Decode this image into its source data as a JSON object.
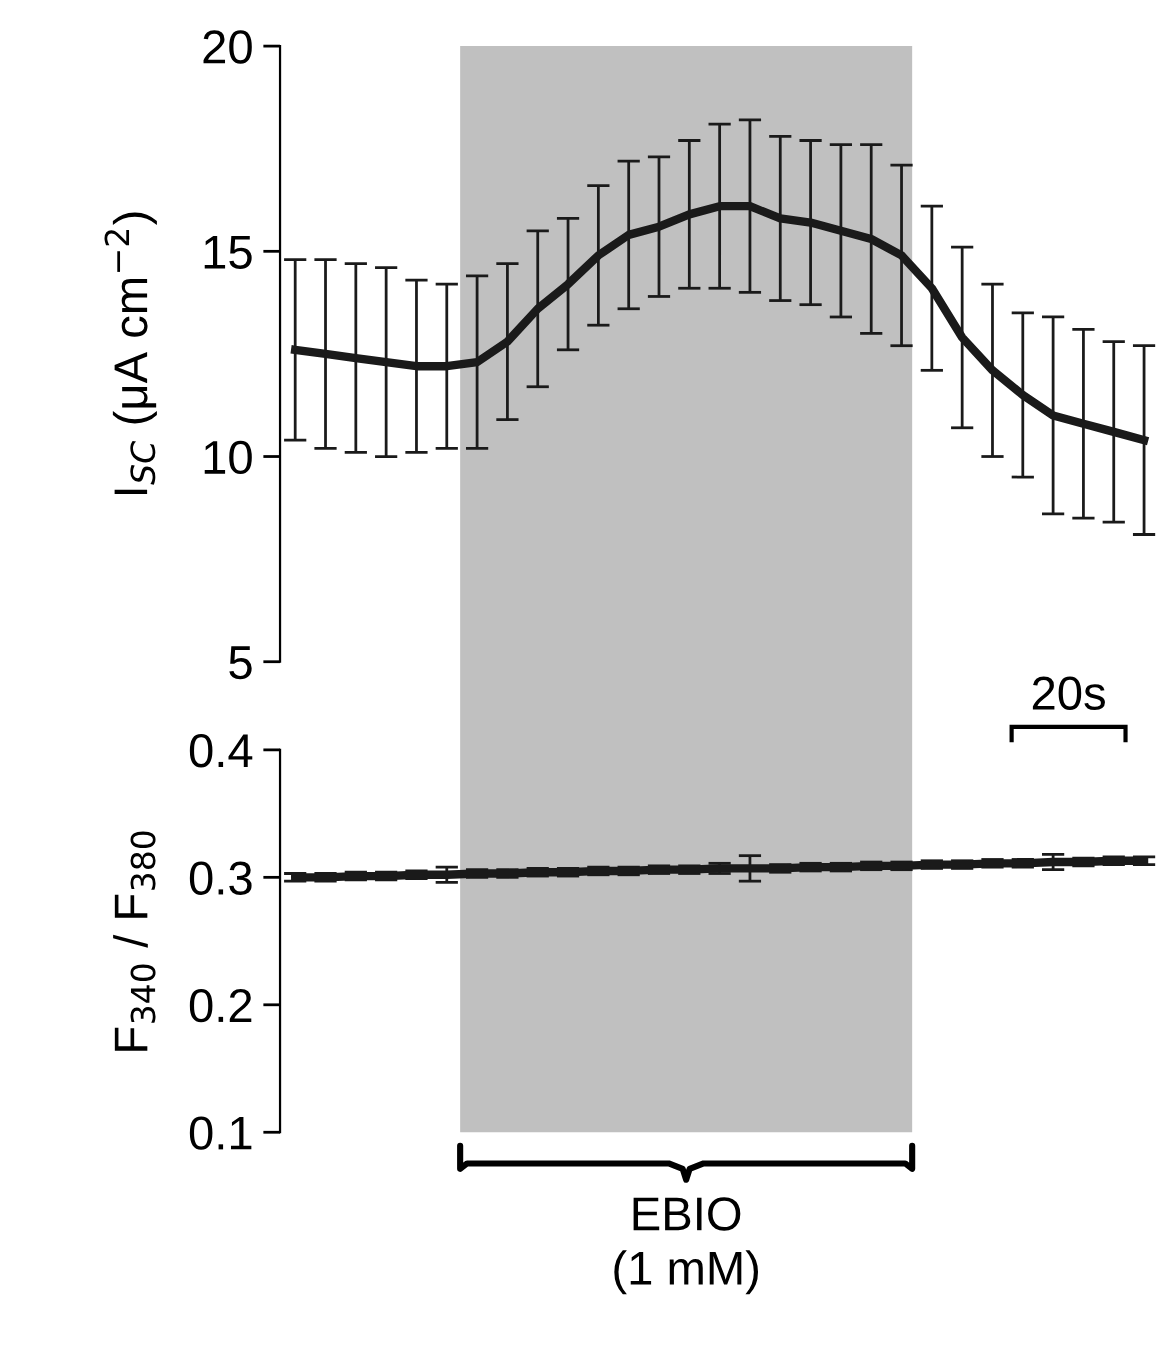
{
  "chart_data": [
    {
      "type": "line",
      "ylabel": "I$_{SC}$ (μA cm$^{−2}$)",
      "categories": [
        null,
        null,
        null,
        null,
        null,
        null,
        null,
        null,
        null,
        null,
        null,
        null,
        null,
        null,
        null,
        null,
        null,
        null,
        null,
        null,
        null,
        null,
        null,
        null,
        null,
        null,
        null,
        null,
        null
      ],
      "series": [
        {
          "color": "#1a1a1a",
          "values": [
            12.6,
            12.5,
            12.4,
            12.3,
            12.2,
            12.2,
            12.3,
            12.8,
            13.6,
            14.2,
            14.9,
            15.4,
            15.6,
            15.9,
            16.1,
            16.1,
            15.8,
            15.7,
            15.5,
            15.3,
            14.9,
            14.1,
            12.9,
            12.1,
            11.5,
            11.0,
            10.8,
            10.6,
            10.4
          ],
          "errors": [
            2.2,
            2.3,
            2.3,
            2.3,
            2.1,
            2.0,
            2.1,
            1.9,
            1.9,
            1.6,
            1.7,
            1.8,
            1.7,
            1.8,
            2.0,
            2.1,
            2.0,
            2.0,
            2.1,
            2.3,
            2.2,
            2.0,
            2.2,
            2.1,
            2.0,
            2.4,
            2.3,
            2.2,
            2.3
          ]
        }
      ],
      "ylim": [
        5,
        20
      ],
      "yticks": [
        5,
        10,
        15,
        20
      ],
      "tick_labels": "y",
      "marker": "none",
      "line_style": "solid"
    },
    {
      "type": "line",
      "ylabel": "F$_{340}$ / F$_{380}$",
      "categories": [
        null,
        null,
        null,
        null,
        null,
        null,
        null,
        null,
        null,
        null,
        null,
        null,
        null,
        null,
        null,
        null,
        null,
        null,
        null,
        null,
        null,
        null,
        null,
        null,
        null,
        null,
        null,
        null,
        null
      ],
      "series": [
        {
          "color": "#1a1a1a",
          "values": [
            0.3,
            0.3,
            0.301,
            0.301,
            0.302,
            0.302,
            0.303,
            0.303,
            0.304,
            0.304,
            0.305,
            0.305,
            0.306,
            0.306,
            0.307,
            0.307,
            0.307,
            0.308,
            0.308,
            0.309,
            0.309,
            0.31,
            0.31,
            0.311,
            0.311,
            0.312,
            0.312,
            0.313,
            0.313
          ],
          "errors": [
            0.003,
            0.003,
            0.003,
            0.003,
            0.003,
            0.006,
            0.003,
            0.003,
            0.003,
            0.003,
            0.003,
            0.003,
            0.003,
            0.003,
            0.004,
            0.01,
            0.003,
            0.003,
            0.003,
            0.003,
            0.003,
            0.003,
            0.003,
            0.003,
            0.003,
            0.006,
            0.003,
            0.003,
            0.003
          ]
        }
      ],
      "ylim": [
        0.1,
        0.4
      ],
      "yticks": [
        0.1,
        0.2,
        0.3,
        0.4
      ],
      "tick_labels": "y",
      "marker": "none",
      "line_style": "solid",
      "annotations": [
        "20s",
        "EBIO\n(1 mM)"
      ]
    }
  ]
}
